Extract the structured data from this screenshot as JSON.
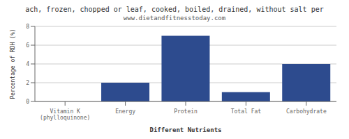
{
  "chart_data": {
    "type": "bar",
    "title": "ach, frozen, chopped or leaf, cooked, boiled, drained, without salt per",
    "subtitle": "www.dietandfitnesstoday.com",
    "categories": [
      "Vitamin K (phylloquinone)",
      "Energy",
      "Protein",
      "Total Fat",
      "Carbohydrate"
    ],
    "values": [
      0.0,
      2.0,
      7.0,
      1.0,
      4.0
    ],
    "color": "#2d4b8e",
    "xlabel": "Different Nutrients",
    "ylabel": "Percentage of RDH (%)",
    "ylim": [
      0,
      8
    ],
    "yticks": [
      0,
      2,
      4,
      6,
      8
    ],
    "grid": true
  }
}
